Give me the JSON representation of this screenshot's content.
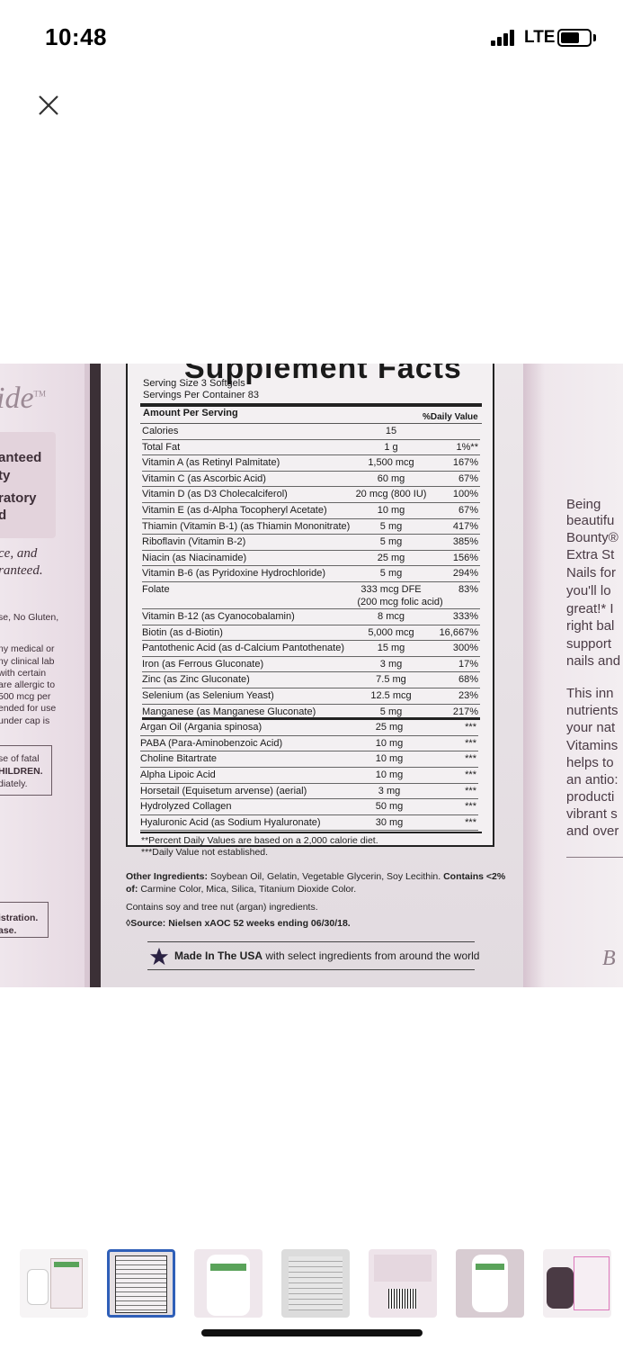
{
  "status": {
    "time": "10:48",
    "network": "LTE"
  },
  "close": {
    "label": "Close",
    "icon": "close-icon"
  },
  "product_image": {
    "left_box": {
      "brand_fragment": "ide",
      "tm": "TM",
      "lines": [
        {
          "text": "anteed",
          "weight": "bold"
        },
        {
          "text": "ty",
          "weight": "bold"
        },
        {
          "text": "ratory",
          "weight": "bold"
        },
        {
          "text": "d",
          "weight": "bold"
        },
        {
          "text": "ce, and",
          "weight": "italic"
        },
        {
          "text": "ranteed.",
          "weight": "italic"
        },
        {
          "text": "se, No Gluten,",
          "weight": "normal"
        },
        {
          "text": "ny medical or",
          "weight": "normal"
        },
        {
          "text": "ny clinical lab",
          "weight": "normal"
        },
        {
          "text": " with certain",
          "weight": "normal"
        },
        {
          "text": "are allergic to",
          "weight": "normal"
        },
        {
          "text": "500 mcg per",
          "weight": "normal"
        },
        {
          "text": "ended for use",
          "weight": "normal"
        },
        {
          "text": " under cap is",
          "weight": "normal"
        },
        {
          "text": "se of fatal",
          "weight": "normal"
        },
        {
          "text": "HILDREN.",
          "weight": "bold"
        },
        {
          "text": "diately.",
          "weight": "normal"
        },
        {
          "text": "istration.",
          "weight": "bold"
        },
        {
          "text": "ase.",
          "weight": "bold"
        }
      ]
    },
    "right_box": {
      "lines": [
        "Being",
        "beautifu",
        "Bounty®",
        "Extra St",
        "Nails for",
        "you'll lo",
        "great!* I",
        "right bal",
        "support",
        "nails and",
        "This inn",
        "nutrients",
        "your nat",
        "Vitamins",
        "helps to",
        "an antio:",
        "producti",
        "vibrant s",
        "and over"
      ],
      "signature": "B"
    },
    "supplement_facts": {
      "title": "Supplement Facts",
      "serving_size": "Serving Size 3 Softgels",
      "servings_per_container": "Servings Per Container 83",
      "amount_header": "Amount Per Serving",
      "dv_header": "%Daily Value",
      "rows": [
        {
          "name": "Calories",
          "amount": "15",
          "dv": ""
        },
        {
          "name": "Total Fat",
          "amount": "1 g",
          "dv": "1%**"
        },
        {
          "name": "Vitamin A (as Retinyl Palmitate)",
          "amount": "1,500 mcg",
          "dv": "167%"
        },
        {
          "name": "Vitamin C (as Ascorbic Acid)",
          "amount": "60 mg",
          "dv": "67%"
        },
        {
          "name": "Vitamin D (as D3 Cholecalciferol)",
          "amount": "20 mcg (800 IU)",
          "dv": "100%"
        },
        {
          "name": "Vitamin E (as d-Alpha Tocopheryl Acetate)",
          "amount": "10 mg",
          "dv": "67%"
        },
        {
          "name": "Thiamin (Vitamin B-1) (as Thiamin Mononitrate)",
          "amount": "5 mg",
          "dv": "417%"
        },
        {
          "name": "Riboflavin (Vitamin B-2)",
          "amount": "5 mg",
          "dv": "385%"
        },
        {
          "name": "Niacin (as Niacinamide)",
          "amount": "25 mg",
          "dv": "156%"
        },
        {
          "name": "Vitamin B-6 (as Pyridoxine Hydrochloride)",
          "amount": "5 mg",
          "dv": "294%"
        },
        {
          "name": "Folate",
          "amount": "333 mcg DFE",
          "sub": "(200 mcg folic acid)",
          "dv": "83%"
        },
        {
          "name": "Vitamin B-12 (as Cyanocobalamin)",
          "amount": "8 mcg",
          "dv": "333%"
        },
        {
          "name": "Biotin (as d-Biotin)",
          "amount": "5,000 mcg",
          "dv": "16,667%"
        },
        {
          "name": "Pantothenic Acid (as d-Calcium Pantothenate)",
          "amount": "15 mg",
          "dv": "300%"
        },
        {
          "name": "Iron (as Ferrous Gluconate)",
          "amount": "3 mg",
          "dv": "17%"
        },
        {
          "name": "Zinc (as Zinc Gluconate)",
          "amount": "7.5 mg",
          "dv": "68%"
        },
        {
          "name": "Selenium (as Selenium Yeast)",
          "amount": "12.5 mcg",
          "dv": "23%"
        },
        {
          "name": "Manganese (as Manganese Gluconate)",
          "amount": "5 mg",
          "dv": "217%"
        },
        {
          "name": "Argan Oil (Argania spinosa)",
          "amount": "25 mg",
          "dv": "***"
        },
        {
          "name": "PABA (Para-Aminobenzoic Acid)",
          "amount": "10 mg",
          "dv": "***"
        },
        {
          "name": "Choline Bitartrate",
          "amount": "10 mg",
          "dv": "***"
        },
        {
          "name": "Alpha Lipoic Acid",
          "amount": "10 mg",
          "dv": "***"
        },
        {
          "name": "Horsetail (Equisetum arvense) (aerial)",
          "amount": "3 mg",
          "dv": "***"
        },
        {
          "name": "Hydrolyzed Collagen",
          "amount": "50 mg",
          "dv": "***"
        },
        {
          "name": "Hyaluronic Acid (as Sodium Hyaluronate)",
          "amount": "30 mg",
          "dv": "***"
        }
      ],
      "footnote_1": "**Percent Daily Values are based on a 2,000 calorie diet.",
      "footnote_2": "***Daily Value not established."
    },
    "other_ingredients_label": "Other Ingredients:",
    "other_ingredients": "Soybean Oil, Gelatin, Vegetable Glycerin, Soy Lecithin.",
    "contains_label": "Contains <2%",
    "contains_of": "of:",
    "contains_list": "Carmine Color, Mica, Silica, Titanium Dioxide Color.",
    "allergen": "Contains soy and tree nut (argan) ingredients.",
    "source": "◊Source: Nielsen xAOC 52 weeks ending 06/30/18.",
    "made_in_bold": "Made In The USA",
    "made_in_rest": "with select ingredients from around the world"
  },
  "thumbnails": [
    {
      "name": "front-of-bottle",
      "selected": false
    },
    {
      "name": "supplement-facts",
      "selected": true
    },
    {
      "name": "hair-skin-nails-bottle",
      "selected": false
    },
    {
      "name": "label-text",
      "selected": false
    },
    {
      "name": "box-barcode",
      "selected": false
    },
    {
      "name": "bottle-in-hand",
      "selected": false
    },
    {
      "name": "bottle-and-box",
      "selected": false
    }
  ],
  "colors": {
    "selected_thumb": "#2f5fb8",
    "panel_bg": "#ece7ea"
  }
}
